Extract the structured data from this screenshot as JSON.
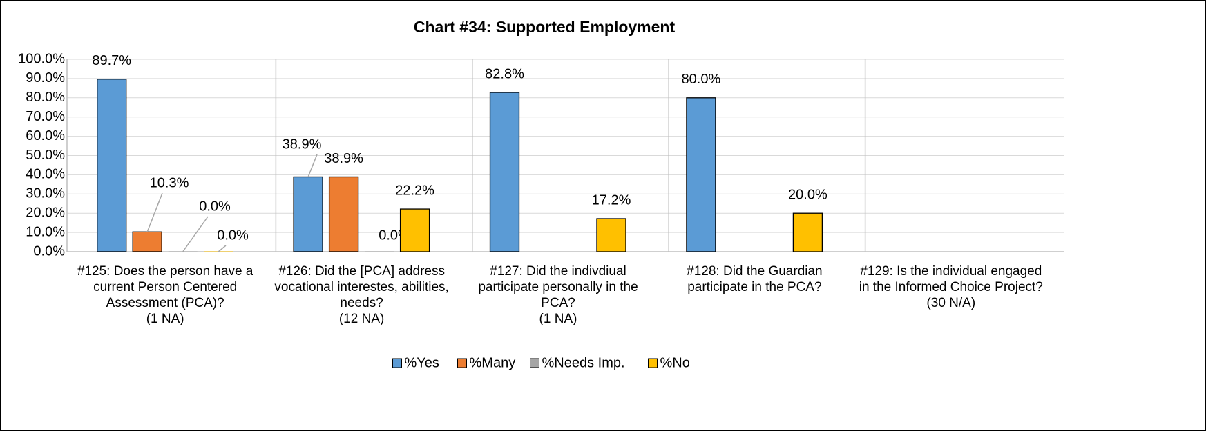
{
  "chart_data": {
    "type": "bar",
    "title": "Chart #34: Supported Employment",
    "categories": [
      "#125: Does the person have a current Person Centered Assessment (PCA)?\n(1 NA)",
      "#126: Did the [PCA] address vocational interestes, abilities, needs?\n(12 NA)",
      "#127: Did the indivdiual participate personally in the PCA?\n(1 NA)",
      "#128: Did the Guardian participate in the PCA?",
      "#129: Is the individual engaged in the Informed Choice Project?\n(30 N/A)"
    ],
    "series": [
      {
        "name": "%Yes",
        "color": "#5b9bd5",
        "values": [
          89.7,
          38.9,
          82.8,
          80.0,
          null
        ],
        "value_labels": [
          "89.7%",
          "38.9%",
          "82.8%",
          "80.0%",
          null
        ]
      },
      {
        "name": "%Many",
        "color": "#ed7d31",
        "values": [
          10.3,
          38.9,
          null,
          null,
          null
        ],
        "value_labels": [
          "10.3%",
          "38.9%",
          null,
          null,
          null
        ]
      },
      {
        "name": "%Needs Imp.",
        "color": "#a5a5a5",
        "values": [
          0.0,
          0.0,
          null,
          null,
          null
        ],
        "value_labels": [
          "0.0%",
          "0.0%",
          null,
          null,
          null
        ]
      },
      {
        "name": "%No",
        "color": "#ffc000",
        "values": [
          0.0,
          22.2,
          17.2,
          20.0,
          null
        ],
        "value_labels": [
          "0.0%",
          "22.2%",
          "17.2%",
          "20.0%",
          null
        ]
      }
    ],
    "ylim": [
      0,
      100
    ],
    "yticks": [
      {
        "value": 0,
        "label": "0.0%"
      },
      {
        "value": 10,
        "label": "10.0%"
      },
      {
        "value": 20,
        "label": "20.0%"
      },
      {
        "value": 30,
        "label": "30.0%"
      },
      {
        "value": 40,
        "label": "40.0%"
      },
      {
        "value": 50,
        "label": "50.0%"
      },
      {
        "value": 60,
        "label": "60.0%"
      },
      {
        "value": 70,
        "label": "70.0%"
      },
      {
        "value": 80,
        "label": "80.0%"
      },
      {
        "value": 90,
        "label": "90.0%"
      },
      {
        "value": 100,
        "label": "100.0%"
      }
    ],
    "grid": true,
    "legend": "bottom"
  }
}
